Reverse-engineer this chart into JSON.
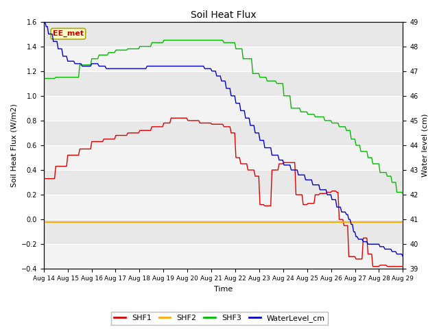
{
  "title": "Soil Heat Flux",
  "ylabel_left": "Soil Heat Flux (W/m2)",
  "ylabel_right": "Water level (cm)",
  "xlabel": "Time",
  "annotation": "EE_met",
  "ylim_left": [
    -0.4,
    1.6
  ],
  "ylim_right": [
    39.0,
    49.0
  ],
  "yticks_left": [
    -0.4,
    -0.2,
    0.0,
    0.2,
    0.4,
    0.6,
    0.8,
    1.0,
    1.2,
    1.4,
    1.6
  ],
  "yticks_right": [
    39.0,
    40.0,
    41.0,
    42.0,
    43.0,
    44.0,
    45.0,
    46.0,
    47.0,
    48.0,
    49.0
  ],
  "xtick_labels": [
    "Aug 14",
    "Aug 15",
    "Aug 16",
    "Aug 17",
    "Aug 18",
    "Aug 19",
    "Aug 20",
    "Aug 21",
    "Aug 22",
    "Aug 23",
    "Aug 24",
    "Aug 25",
    "Aug 26",
    "Aug 27",
    "Aug 28",
    "Aug 29"
  ],
  "colors": {
    "SHF1": "#dd0000",
    "SHF2": "#ffaa00",
    "SHF3": "#00bb00",
    "WaterLevel": "#0000cc",
    "background": "#e8e8e8",
    "annotation_bg": "#ffffcc",
    "annotation_border": "#aaaa00",
    "annotation_text": "#cc0000"
  },
  "legend_labels": [
    "SHF1",
    "SHF2",
    "SHF3",
    "WaterLevel_cm"
  ],
  "figsize": [
    6.4,
    4.8
  ],
  "dpi": 100
}
